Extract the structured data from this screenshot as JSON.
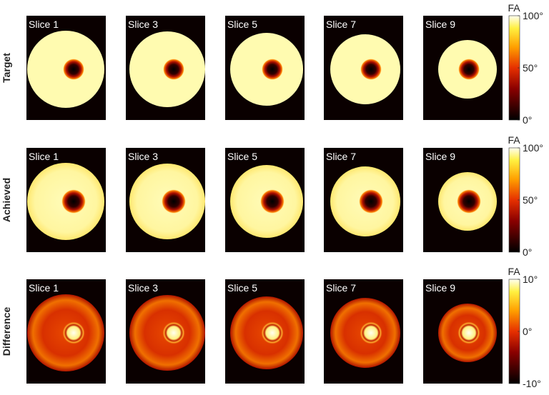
{
  "rows": [
    {
      "label": "Target",
      "slices": [
        "Slice 1",
        "Slice 3",
        "Slice 5",
        "Slice 7",
        "Slice 9"
      ]
    },
    {
      "label": "Achieved",
      "slices": [
        "Slice 1",
        "Slice 3",
        "Slice 5",
        "Slice 7",
        "Slice 9"
      ]
    },
    {
      "label": "Difference",
      "slices": [
        "Slice 1",
        "Slice 3",
        "Slice 5",
        "Slice 7",
        "Slice 9"
      ]
    }
  ],
  "colorbars": [
    {
      "title": "FA",
      "ticks": [
        "100°",
        "50°",
        "0°"
      ]
    },
    {
      "title": "FA",
      "ticks": [
        "100°",
        "50°",
        "0°"
      ]
    },
    {
      "title": "FA",
      "ticks": [
        "10°",
        "0°",
        "-10°"
      ]
    }
  ]
}
